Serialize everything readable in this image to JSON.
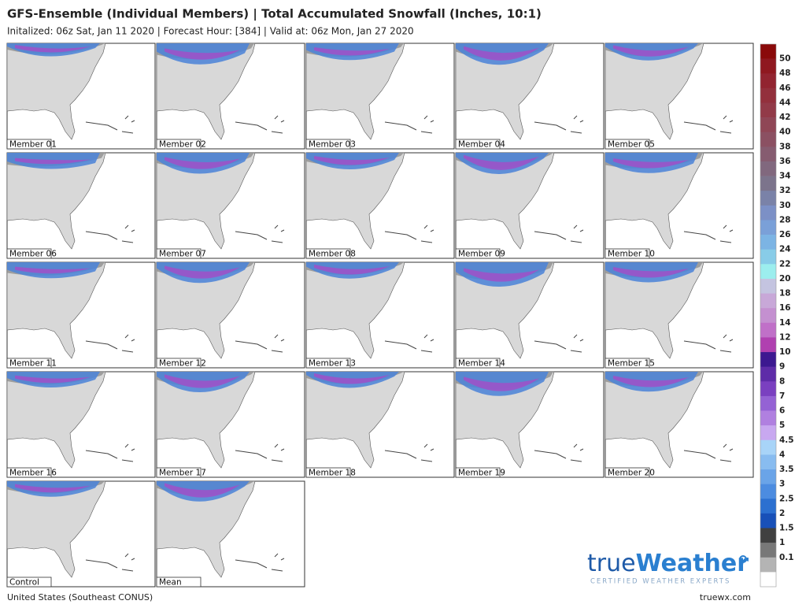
{
  "header": {
    "title": "GFS-Ensemble (Individual Members) | Total Accumulated Snowfall (Inches, 10:1)",
    "subtitle": "Initalized: 06z Sat, Jan 11 2020  |  Forecast Hour: [384]  |  Valid at: 06z Mon, Jan 27 2020"
  },
  "panels": [
    "Member 01",
    "Member 02",
    "Member 03",
    "Member 04",
    "Member 05",
    "Member 06",
    "Member 07",
    "Member 08",
    "Member 09",
    "Member 10",
    "Member 11",
    "Member 12",
    "Member 13",
    "Member 14",
    "Member 15",
    "Member 16",
    "Member 17",
    "Member 18",
    "Member 19",
    "Member 20",
    "Control",
    "Mean"
  ],
  "legend": {
    "labels": [
      "50",
      "48",
      "46",
      "44",
      "42",
      "40",
      "38",
      "36",
      "34",
      "32",
      "30",
      "28",
      "26",
      "24",
      "22",
      "20",
      "18",
      "16",
      "14",
      "12",
      "10",
      "9",
      "8",
      "7",
      "6",
      "5",
      "4.5",
      "4",
      "3.5",
      "3",
      "2.5",
      "2",
      "1.5",
      "1",
      "0.1"
    ],
    "colors": [
      "#8a0a0a",
      "#8f1820",
      "#922430",
      "#93303c",
      "#923a48",
      "#8f4656",
      "#8b5062",
      "#865c70",
      "#81687e",
      "#7c748c",
      "#7a82a8",
      "#7c90c6",
      "#7aa0d8",
      "#7cb4e4",
      "#88cce8",
      "#9ceeee",
      "#c4c4e0",
      "#c8a8d8",
      "#c490d0",
      "#c070c8",
      "#b040b0",
      "#3c1890",
      "#5e2ca8",
      "#7a40c0",
      "#9462d4",
      "#b080e0",
      "#c8a8f0",
      "#a8d4f8",
      "#88bcf0",
      "#6aa4e8",
      "#4c8ce0",
      "#2c70d0",
      "#1850b8",
      "#404040",
      "#787878",
      "#b4b4b4",
      "#ffffff"
    ]
  },
  "footer": {
    "region": "United States (Southeast CONUS)",
    "site": "truewx.com"
  },
  "logo": {
    "brand_a": "true",
    "brand_b": "Weather",
    "tagline": "CERTIFIED WEATHER EXPERTS"
  }
}
